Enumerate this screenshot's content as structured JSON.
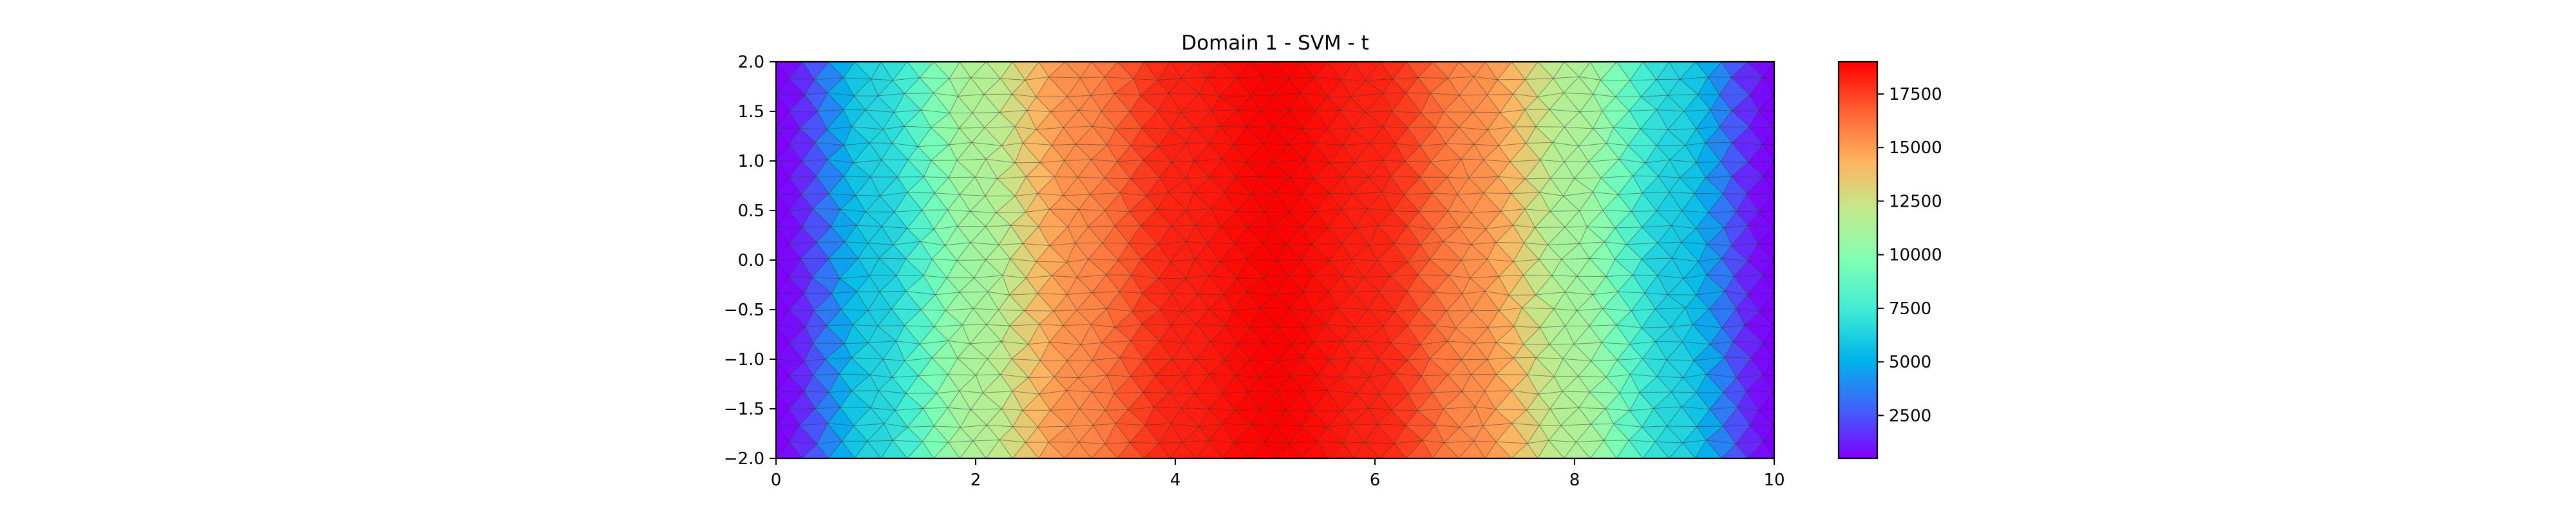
{
  "chart_data": {
    "type": "heatmap",
    "title": "Domain 1 - SVM - t",
    "xlabel": "",
    "ylabel": "",
    "xlim": [
      0,
      10
    ],
    "ylim": [
      -2.0,
      2.0
    ],
    "x_ticks": [
      0,
      2,
      4,
      6,
      8,
      10
    ],
    "x_tick_labels": [
      "0",
      "2",
      "4",
      "6",
      "8",
      "10"
    ],
    "y_ticks": [
      -2.0,
      -1.5,
      -1.0,
      -0.5,
      0.0,
      0.5,
      1.0,
      1.5,
      2.0
    ],
    "y_tick_labels": [
      "−2.0",
      "−1.5",
      "−1.0",
      "−0.5",
      "0.0",
      "0.5",
      "1.0",
      "1.5",
      "2.0"
    ],
    "colormap": "rainbow",
    "colorbar": {
      "range": [
        500,
        19000
      ],
      "ticks": [
        2500,
        5000,
        7500,
        10000,
        12500,
        15000,
        17500
      ],
      "tick_labels": [
        "2500",
        "5000",
        "7500",
        "10000",
        "12500",
        "15000",
        "17500"
      ]
    },
    "mesh": "triangular",
    "grid": false,
    "field_profile": {
      "description_x": [
        0,
        1,
        2,
        3,
        4,
        5,
        6,
        7,
        8,
        9,
        10
      ],
      "t_at_y0": [
        500,
        6500,
        11500,
        15500,
        18200,
        19000,
        18200,
        15500,
        11500,
        6500,
        500
      ]
    }
  }
}
